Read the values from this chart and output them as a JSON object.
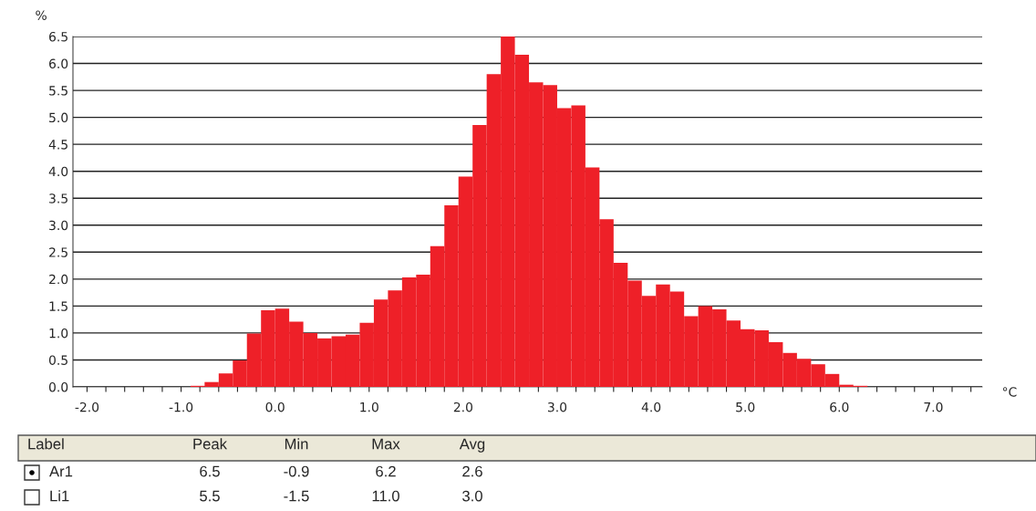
{
  "chart_data": {
    "type": "histogram",
    "ylabel": "%",
    "xlabel": "°C",
    "color": "#ee2028",
    "bins": [
      -0.9,
      -0.75,
      -0.6,
      -0.45,
      -0.3,
      -0.15,
      0.0,
      0.15,
      0.3,
      0.45,
      0.6,
      0.75,
      0.9,
      1.05,
      1.2,
      1.35,
      1.5,
      1.65,
      1.8,
      1.95,
      2.1,
      2.25,
      2.4,
      2.55,
      2.7,
      2.85,
      3.0,
      3.15,
      3.3,
      3.45,
      3.6,
      3.75,
      3.9,
      4.05,
      4.2,
      4.35,
      4.5,
      4.65,
      4.8,
      4.95,
      5.1,
      5.25,
      5.4,
      5.55,
      5.7,
      5.85,
      6.0,
      6.15,
      6.3
    ],
    "values": [
      0.02,
      0.09,
      0.25,
      0.49,
      0.99,
      1.42,
      1.45,
      1.21,
      1.0,
      0.9,
      0.94,
      0.97,
      1.19,
      1.62,
      1.79,
      2.03,
      2.08,
      2.61,
      3.37,
      3.9,
      4.86,
      5.8,
      6.5,
      6.16,
      5.65,
      5.6,
      5.17,
      5.22,
      4.07,
      3.11,
      2.3,
      1.97,
      1.69,
      1.9,
      1.77,
      1.31,
      1.5,
      1.44,
      1.23,
      1.07,
      1.05,
      0.83,
      0.63,
      0.52,
      0.42,
      0.24,
      0.04,
      0.02
    ],
    "xlim": [
      -2.15,
      7.52
    ],
    "ylim": [
      0,
      6.5
    ],
    "xticks": [
      {
        "value": -2.0,
        "label": "-2.0"
      },
      {
        "value": -1.8,
        "label": null
      },
      {
        "value": -1.6,
        "label": null
      },
      {
        "value": -1.4,
        "label": null
      },
      {
        "value": -1.2,
        "label": null
      },
      {
        "value": -1.0,
        "label": "-1.0"
      },
      {
        "value": -0.8,
        "label": null
      },
      {
        "value": -0.6,
        "label": null
      },
      {
        "value": -0.4,
        "label": null
      },
      {
        "value": -0.2,
        "label": null
      },
      {
        "value": 0.0,
        "label": "0.0"
      },
      {
        "value": 0.2,
        "label": null
      },
      {
        "value": 0.4,
        "label": null
      },
      {
        "value": 0.6,
        "label": null
      },
      {
        "value": 0.8,
        "label": null
      },
      {
        "value": 1.0,
        "label": "1.0"
      },
      {
        "value": 1.2,
        "label": null
      },
      {
        "value": 1.4,
        "label": null
      },
      {
        "value": 1.6,
        "label": null
      },
      {
        "value": 1.8,
        "label": null
      },
      {
        "value": 2.0,
        "label": "2.0"
      },
      {
        "value": 2.2,
        "label": null
      },
      {
        "value": 2.4,
        "label": null
      },
      {
        "value": 2.6,
        "label": null
      },
      {
        "value": 2.8,
        "label": null
      },
      {
        "value": 3.0,
        "label": "3.0"
      },
      {
        "value": 3.2,
        "label": null
      },
      {
        "value": 3.4,
        "label": null
      },
      {
        "value": 3.6,
        "label": null
      },
      {
        "value": 3.8,
        "label": null
      },
      {
        "value": 4.0,
        "label": "4.0"
      },
      {
        "value": 4.2,
        "label": null
      },
      {
        "value": 4.4,
        "label": null
      },
      {
        "value": 4.6,
        "label": null
      },
      {
        "value": 4.8,
        "label": null
      },
      {
        "value": 5.0,
        "label": "5.0"
      },
      {
        "value": 5.2,
        "label": null
      },
      {
        "value": 5.4,
        "label": null
      },
      {
        "value": 5.6,
        "label": null
      },
      {
        "value": 5.8,
        "label": null
      },
      {
        "value": 6.0,
        "label": "6.0"
      },
      {
        "value": 6.2,
        "label": null
      },
      {
        "value": 6.4,
        "label": null
      },
      {
        "value": 6.6,
        "label": null
      },
      {
        "value": 6.8,
        "label": null
      },
      {
        "value": 7.0,
        "label": "7.0"
      },
      {
        "value": 7.2,
        "label": null
      },
      {
        "value": 7.4,
        "label": null
      }
    ],
    "yticks": [
      {
        "value": 0,
        "label": "0.0"
      },
      {
        "value": 0.5,
        "label": "0.5"
      },
      {
        "value": 1.0,
        "label": "1.0"
      },
      {
        "value": 1.5,
        "label": "1.5"
      },
      {
        "value": 2.0,
        "label": "2.0"
      },
      {
        "value": 2.5,
        "label": "2.5"
      },
      {
        "value": 3.0,
        "label": "3.0"
      },
      {
        "value": 3.5,
        "label": "3.5"
      },
      {
        "value": 4.0,
        "label": "4.0"
      },
      {
        "value": 4.5,
        "label": "4.5"
      },
      {
        "value": 5.0,
        "label": "5.0"
      },
      {
        "value": 5.5,
        "label": "5.5"
      },
      {
        "value": 6.0,
        "label": "6.0"
      },
      {
        "value": 6.5,
        "label": "6.5"
      }
    ],
    "grid": "y",
    "annotations": [
      "Label",
      "Peak",
      "Min",
      "Max",
      "Avg",
      "Ar1",
      "6.5",
      "-0.9",
      "6.2",
      "2.6",
      "Li1",
      "5.5",
      "-1.5",
      "11.0",
      "3.0"
    ]
  }
}
